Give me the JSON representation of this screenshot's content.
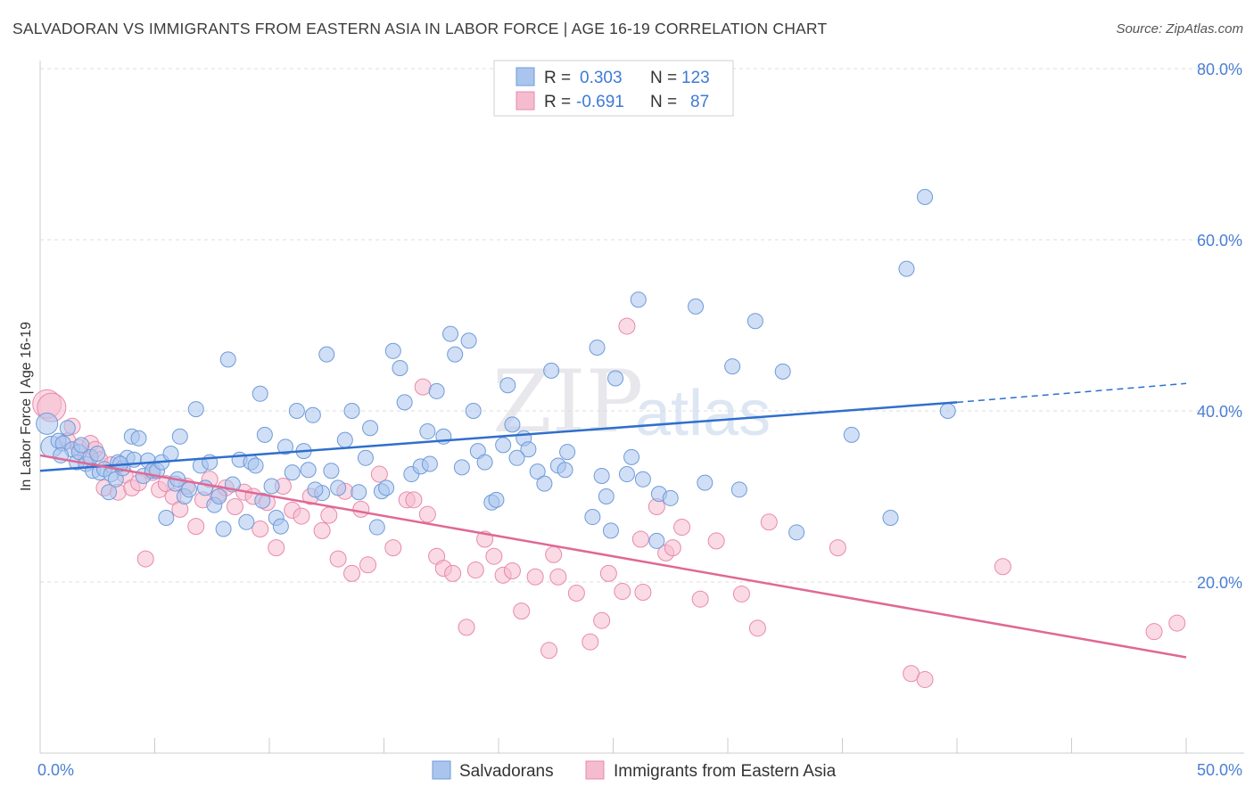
{
  "title": "SALVADORAN VS IMMIGRANTS FROM EASTERN ASIA IN LABOR FORCE | AGE 16-19 CORRELATION CHART",
  "source": "Source: ZipAtlas.com",
  "watermark": {
    "zip": "ZIP",
    "atlas": "atlas"
  },
  "colors": {
    "blue_fill": "#a9c5ee",
    "blue_stroke": "#6f9bd8",
    "blue_line": "#2f6fcd",
    "pink_fill": "#f5bcd0",
    "pink_stroke": "#e88aab",
    "pink_line": "#e06895",
    "grid": "#dcdcdc",
    "tick_text": "#4a7fd4"
  },
  "legend": {
    "rows": [
      {
        "r_label": "R =",
        "r_value": "0.303",
        "n_label": "N =",
        "n_value": "123"
      },
      {
        "r_label": "R =",
        "r_value": "-0.691",
        "n_label": "N =",
        "n_value": "87"
      }
    ]
  },
  "chart_data": {
    "type": "scatter",
    "title": "SALVADORAN VS IMMIGRANTS FROM EASTERN ASIA IN LABOR FORCE | AGE 16-19 CORRELATION CHART",
    "xlabel": "",
    "ylabel": "In Labor Force | Age 16-19",
    "xlim": [
      0,
      50
    ],
    "ylim": [
      0,
      80
    ],
    "x_tick_labels": [
      "0.0%",
      "50.0%"
    ],
    "y_ticks": [
      20,
      40,
      60,
      80
    ],
    "y_tick_labels": [
      "20.0%",
      "40.0%",
      "60.0%",
      "80.0%"
    ],
    "grid": true,
    "legend_position": "top-center",
    "series": [
      {
        "name": "Salvadorans",
        "color": "#a9c5ee",
        "trend": {
          "x0": 0,
          "y0": 33.0,
          "x1": 40,
          "y1": 41.0,
          "dash_x1": 50,
          "dash_y1": 43.2
        },
        "points": [
          [
            0.3,
            38.5
          ],
          [
            0.5,
            35.8
          ],
          [
            0.8,
            36.5
          ],
          [
            1.0,
            36.2
          ],
          [
            1.2,
            38.0
          ],
          [
            1.4,
            35.5
          ],
          [
            1.6,
            34.0
          ],
          [
            1.7,
            35.2
          ],
          [
            1.8,
            36.0
          ],
          [
            2.0,
            33.8
          ],
          [
            2.2,
            34.6
          ],
          [
            2.3,
            33.0
          ],
          [
            2.5,
            35.0
          ],
          [
            2.6,
            32.8
          ],
          [
            2.8,
            33.2
          ],
          [
            3.0,
            30.5
          ],
          [
            3.1,
            32.6
          ],
          [
            3.3,
            32.0
          ],
          [
            3.4,
            34.0
          ],
          [
            3.6,
            33.3
          ],
          [
            3.8,
            34.5
          ],
          [
            4.0,
            37.0
          ],
          [
            4.1,
            34.3
          ],
          [
            4.3,
            36.8
          ],
          [
            4.5,
            32.4
          ],
          [
            4.7,
            34.2
          ],
          [
            4.9,
            33.0
          ],
          [
            5.1,
            33.0
          ],
          [
            5.3,
            34.0
          ],
          [
            5.5,
            27.5
          ],
          [
            5.7,
            35.0
          ],
          [
            5.9,
            31.5
          ],
          [
            6.1,
            37.0
          ],
          [
            6.3,
            30.0
          ],
          [
            6.5,
            30.8
          ],
          [
            6.8,
            40.2
          ],
          [
            7.0,
            33.6
          ],
          [
            7.2,
            31.0
          ],
          [
            7.4,
            34.0
          ],
          [
            7.6,
            29.0
          ],
          [
            7.8,
            30.0
          ],
          [
            8.0,
            26.2
          ],
          [
            8.2,
            46.0
          ],
          [
            8.4,
            31.4
          ],
          [
            8.7,
            34.3
          ],
          [
            9.0,
            27.0
          ],
          [
            9.2,
            34.0
          ],
          [
            9.4,
            33.6
          ],
          [
            9.6,
            42.0
          ],
          [
            9.8,
            37.2
          ],
          [
            10.1,
            31.2
          ],
          [
            10.3,
            27.5
          ],
          [
            10.5,
            26.5
          ],
          [
            10.7,
            35.8
          ],
          [
            11.0,
            32.8
          ],
          [
            11.2,
            40.0
          ],
          [
            11.5,
            35.3
          ],
          [
            11.7,
            33.1
          ],
          [
            11.9,
            39.5
          ],
          [
            12.3,
            30.4
          ],
          [
            12.5,
            46.6
          ],
          [
            12.7,
            33.0
          ],
          [
            13.0,
            31.0
          ],
          [
            13.3,
            36.6
          ],
          [
            13.6,
            40.0
          ],
          [
            13.9,
            30.5
          ],
          [
            14.2,
            34.5
          ],
          [
            14.4,
            38.0
          ],
          [
            14.7,
            26.4
          ],
          [
            14.9,
            30.6
          ],
          [
            15.1,
            31.0
          ],
          [
            15.4,
            47.0
          ],
          [
            15.7,
            45.0
          ],
          [
            15.9,
            41.0
          ],
          [
            16.2,
            32.6
          ],
          [
            16.6,
            33.5
          ],
          [
            16.9,
            37.6
          ],
          [
            17.3,
            42.3
          ],
          [
            17.6,
            37.0
          ],
          [
            17.9,
            49.0
          ],
          [
            18.1,
            46.6
          ],
          [
            18.4,
            33.4
          ],
          [
            18.7,
            48.2
          ],
          [
            18.9,
            40.0
          ],
          [
            19.1,
            35.3
          ],
          [
            19.4,
            34.0
          ],
          [
            19.7,
            29.3
          ],
          [
            19.9,
            29.6
          ],
          [
            20.2,
            36.0
          ],
          [
            20.4,
            43.0
          ],
          [
            20.6,
            38.4
          ],
          [
            21.1,
            36.8
          ],
          [
            21.3,
            35.5
          ],
          [
            21.7,
            32.9
          ],
          [
            22.0,
            31.5
          ],
          [
            22.3,
            44.7
          ],
          [
            22.6,
            33.6
          ],
          [
            22.9,
            33.1
          ],
          [
            24.1,
            27.6
          ],
          [
            24.3,
            47.4
          ],
          [
            24.5,
            32.4
          ],
          [
            24.9,
            26.0
          ],
          [
            25.1,
            43.8
          ],
          [
            25.6,
            32.6
          ],
          [
            25.8,
            34.6
          ],
          [
            26.1,
            53.0
          ],
          [
            26.9,
            24.8
          ],
          [
            27.0,
            30.3
          ],
          [
            28.6,
            52.2
          ],
          [
            30.2,
            45.2
          ],
          [
            31.2,
            50.5
          ],
          [
            32.4,
            44.6
          ],
          [
            33.0,
            25.8
          ],
          [
            35.4,
            37.2
          ],
          [
            37.1,
            27.5
          ],
          [
            37.8,
            56.6
          ],
          [
            38.6,
            65.0
          ],
          [
            39.6,
            40.0
          ],
          [
            0.9,
            34.8
          ],
          [
            3.5,
            33.8
          ],
          [
            6.0,
            32.0
          ],
          [
            9.7,
            29.5
          ],
          [
            12.0,
            30.8
          ],
          [
            17.0,
            33.8
          ],
          [
            20.8,
            34.5
          ],
          [
            23.0,
            35.2
          ],
          [
            24.7,
            30.0
          ],
          [
            26.3,
            32.0
          ],
          [
            27.5,
            29.8
          ],
          [
            29.0,
            31.6
          ],
          [
            30.5,
            30.8
          ]
        ]
      },
      {
        "name": "Immigrants from Eastern Asia",
        "color": "#f5bcd0",
        "trend": {
          "x0": 0,
          "y0": 34.8,
          "x1": 50,
          "y1": 11.2
        },
        "points": [
          [
            0.3,
            40.8
          ],
          [
            0.5,
            40.4
          ],
          [
            1.2,
            36.5
          ],
          [
            1.4,
            38.2
          ],
          [
            1.7,
            35.7
          ],
          [
            2.0,
            34.2
          ],
          [
            2.2,
            36.2
          ],
          [
            2.4,
            35.5
          ],
          [
            2.6,
            34.3
          ],
          [
            2.8,
            31.0
          ],
          [
            3.1,
            33.7
          ],
          [
            3.4,
            30.5
          ],
          [
            3.7,
            32.5
          ],
          [
            4.0,
            31.0
          ],
          [
            4.3,
            31.6
          ],
          [
            4.6,
            22.7
          ],
          [
            4.9,
            32.8
          ],
          [
            5.2,
            30.8
          ],
          [
            5.5,
            31.5
          ],
          [
            5.8,
            30.0
          ],
          [
            6.1,
            28.5
          ],
          [
            6.4,
            31.2
          ],
          [
            6.8,
            26.5
          ],
          [
            7.1,
            29.6
          ],
          [
            7.4,
            32.0
          ],
          [
            7.8,
            30.3
          ],
          [
            8.1,
            31.0
          ],
          [
            8.5,
            28.8
          ],
          [
            8.9,
            30.5
          ],
          [
            9.3,
            30.0
          ],
          [
            9.6,
            26.2
          ],
          [
            9.9,
            29.3
          ],
          [
            10.3,
            24.0
          ],
          [
            10.6,
            31.2
          ],
          [
            11.0,
            28.4
          ],
          [
            11.4,
            27.7
          ],
          [
            11.8,
            30.0
          ],
          [
            12.3,
            26.0
          ],
          [
            12.6,
            27.8
          ],
          [
            13.0,
            22.7
          ],
          [
            13.3,
            30.6
          ],
          [
            13.6,
            21.0
          ],
          [
            14.0,
            28.5
          ],
          [
            14.3,
            22.0
          ],
          [
            14.8,
            32.6
          ],
          [
            15.4,
            24.0
          ],
          [
            16.0,
            29.6
          ],
          [
            16.3,
            29.6
          ],
          [
            16.7,
            42.8
          ],
          [
            16.9,
            27.9
          ],
          [
            17.3,
            23.0
          ],
          [
            17.6,
            21.6
          ],
          [
            18.0,
            21.0
          ],
          [
            18.6,
            14.7
          ],
          [
            19.0,
            21.4
          ],
          [
            19.4,
            25.0
          ],
          [
            19.8,
            23.0
          ],
          [
            20.2,
            20.8
          ],
          [
            20.6,
            21.3
          ],
          [
            21.0,
            16.6
          ],
          [
            21.6,
            20.6
          ],
          [
            22.2,
            12.0
          ],
          [
            22.6,
            20.6
          ],
          [
            23.4,
            18.7
          ],
          [
            24.0,
            13.0
          ],
          [
            24.5,
            15.5
          ],
          [
            24.8,
            21.0
          ],
          [
            25.4,
            18.9
          ],
          [
            25.6,
            49.9
          ],
          [
            26.3,
            18.8
          ],
          [
            26.9,
            28.8
          ],
          [
            27.3,
            23.4
          ],
          [
            28.0,
            26.4
          ],
          [
            28.8,
            18.0
          ],
          [
            29.5,
            24.8
          ],
          [
            30.6,
            18.6
          ],
          [
            31.3,
            14.6
          ],
          [
            31.8,
            27.0
          ],
          [
            34.8,
            24.0
          ],
          [
            38.0,
            9.3
          ],
          [
            38.6,
            8.6
          ],
          [
            42.0,
            21.8
          ],
          [
            48.6,
            14.2
          ],
          [
            49.6,
            15.2
          ],
          [
            22.4,
            23.2
          ],
          [
            26.2,
            25.0
          ],
          [
            27.6,
            24.0
          ]
        ]
      }
    ]
  },
  "bottom_legend": [
    {
      "label": "Salvadorans"
    },
    {
      "label": "Immigrants from Eastern Asia"
    }
  ]
}
